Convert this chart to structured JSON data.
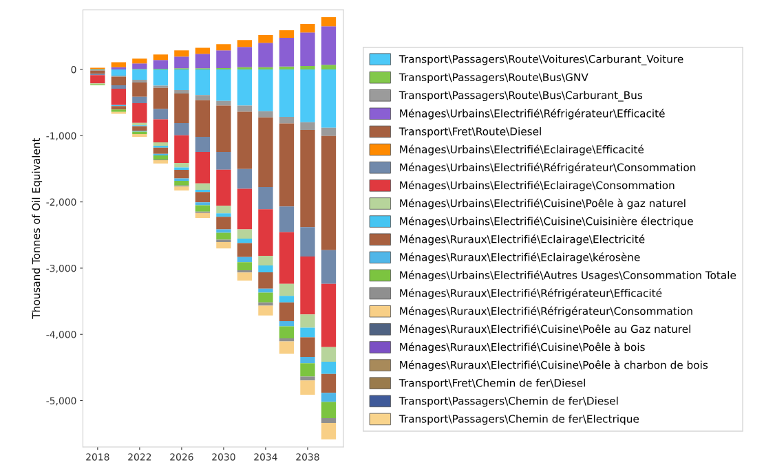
{
  "chart_data": {
    "type": "bar",
    "stacked": true,
    "ylabel": "Thousand Tonnes of Oil Equivalent",
    "x": [
      2018,
      2020,
      2022,
      2024,
      2026,
      2028,
      2030,
      2032,
      2034,
      2036,
      2038,
      2040
    ],
    "xlim": [
      2016.6,
      2041.4
    ],
    "xticks": [
      2018,
      2022,
      2026,
      2030,
      2034,
      2038
    ],
    "ylim": [
      -5700,
      900
    ],
    "yticks": [
      0,
      {
        "value": -1000,
        "label": "-1,000"
      },
      {
        "value": -2000,
        "label": "-2,000"
      },
      {
        "value": -3000,
        "label": "-3,000"
      },
      {
        "value": -4000,
        "label": "-4,000"
      },
      {
        "value": -5000,
        "label": "-5,000"
      }
    ],
    "grid": false,
    "legend": "right",
    "series": [
      {
        "name": "Transport\\Passagers\\Route\\Voitures\\Carburant_Voiture",
        "color": "#4cc9f8",
        "values": [
          -15,
          -94,
          -156,
          -243,
          -312,
          -388,
          -475,
          -544,
          -631,
          -717,
          -797,
          -880
        ]
      },
      {
        "name": "Transport\\Passagers\\Route\\Bus\\GNV",
        "color": "#82c84a",
        "values": [
          0,
          0,
          7,
          10,
          17,
          17,
          21,
          35,
          35,
          45,
          52,
          69
        ]
      },
      {
        "name": "Transport\\Passagers\\Route\\Bus\\Carburant_Bus",
        "color": "#9b9b9b",
        "values": [
          0,
          -17,
          -42,
          -35,
          -52,
          -76,
          -69,
          -94,
          -94,
          -97,
          -118,
          -125
        ]
      },
      {
        "name": "Ménages\\Urbains\\Electrifié\\Réfrigérateur\\Efficacité",
        "color": "#8a5fd3",
        "values": [
          null,
          35,
          83,
          132,
          177,
          218,
          267,
          305,
          367,
          433,
          506,
          582
        ]
      },
      {
        "name": "Transport\\Fret\\Route\\Diesel",
        "color": "#a65f3f",
        "values": [
          -50,
          -128,
          -215,
          -319,
          -447,
          -554,
          -703,
          -866,
          -1050,
          -1254,
          -1466,
          -1722
        ]
      },
      {
        "name": "Ménages\\Urbains\\Electrifié\\Eclairage\\Efficacité",
        "color": "#ff8a00",
        "values": [
          25,
          73,
          73,
          83,
          94,
          93,
          93,
          104,
          118,
          115,
          128,
          139
        ]
      },
      {
        "name": "Ménages\\Urbains\\Electrifié\\Réfrigérateur\\Consommation",
        "color": "#7089ab",
        "values": [
          -20,
          -52,
          -97,
          -156,
          -184,
          -229,
          -267,
          -298,
          -336,
          -388,
          -444,
          -509
        ]
      },
      {
        "name": "Ménages\\Urbains\\Electrifié\\Eclairage\\Consommation",
        "color": "#e0393f",
        "values": [
          -125,
          -246,
          -298,
          -347,
          -416,
          -475,
          -544,
          -613,
          -703,
          -780,
          -873,
          -956
        ]
      },
      {
        "name": "Ménages\\Urbains\\Electrifié\\Cuisine\\Poêle à gaz naturel",
        "color": "#b7d49b",
        "values": [
          -15,
          0,
          -35,
          -52,
          -69,
          -94,
          -114,
          -139,
          -146,
          -184,
          -201,
          -222
        ]
      },
      {
        "name": "Ménages\\Urbains\\Electrifié\\Cuisine\\Cuisinière électrique",
        "color": "#45c5f2",
        "values": [
          0,
          -17,
          -14,
          -28,
          -35,
          -35,
          -52,
          -69,
          -104,
          -97,
          -146,
          -184
        ]
      },
      {
        "name": "Ménages\\Ruraux\\Electrifié\\Eclairage\\Electricité",
        "color": "#a8603f",
        "values": [
          0,
          -52,
          -69,
          -94,
          -132,
          -156,
          -191,
          -208,
          -246,
          -284,
          -295,
          -284
        ]
      },
      {
        "name": "Ménages\\Ruraux\\Electrifié\\Eclairage\\kérosène",
        "color": "#4fb6e8",
        "values": [
          0,
          0,
          -14,
          -24,
          -35,
          -45,
          -52,
          -80,
          -59,
          -76,
          -97,
          -139
        ]
      },
      {
        "name": "Ménages\\Urbains\\Electrifié\\Autres Usages\\Consommation Totale",
        "color": "#7cc440",
        "values": [
          -15,
          -35,
          -35,
          -62,
          -69,
          -94,
          -104,
          -121,
          -149,
          -184,
          -198,
          -243
        ]
      },
      {
        "name": "Ménages\\Ruraux\\Electrifié\\Réfrigérateur\\Efficacité",
        "color": "#8f8f8f",
        "values": [
          0,
          0,
          0,
          -10,
          -17,
          -21,
          -35,
          -35,
          -49,
          -45,
          -62,
          -73
        ]
      },
      {
        "name": "Ménages\\Ruraux\\Electrifié\\Réfrigérateur\\Consommation",
        "color": "#f8cf86",
        "values": [
          0,
          -28,
          -42,
          -49,
          -59,
          -76,
          -97,
          -121,
          -149,
          -187,
          -215,
          -249
        ]
      },
      {
        "name": "Ménages\\Ruraux\\Electrifié\\Cuisine\\Poêle au Gaz naturel",
        "color": "#4f6282",
        "values": [
          0,
          0,
          0,
          0,
          0,
          0,
          0,
          0,
          0,
          0,
          0,
          0
        ]
      },
      {
        "name": "Ménages\\Ruraux\\Electrifié\\Cuisine\\Poêle à bois",
        "color": "#7b4fc4",
        "values": [
          0,
          0,
          0,
          0,
          0,
          0,
          0,
          0,
          0,
          0,
          0,
          0
        ]
      },
      {
        "name": "Ménages\\Ruraux\\Electrifié\\Cuisine\\Poêle à charbon de bois",
        "color": "#a88a5a",
        "values": [
          0,
          0,
          0,
          0,
          0,
          0,
          0,
          0,
          0,
          0,
          0,
          0
        ]
      },
      {
        "name": "Transport\\Fret\\Chemin de fer\\Diesel",
        "color": "#9a7b4c",
        "values": [
          0,
          0,
          0,
          0,
          0,
          0,
          0,
          0,
          0,
          0,
          0,
          0
        ]
      },
      {
        "name": "Transport\\Passagers\\Chemin de fer\\Diesel",
        "color": "#3f5a9a",
        "values": [
          0,
          0,
          0,
          0,
          0,
          0,
          0,
          0,
          0,
          0,
          0,
          0
        ]
      },
      {
        "name": "Transport\\Passagers\\Chemin de fer\\Electrique",
        "color": "#f9d48c",
        "values": [
          0,
          0,
          0,
          0,
          0,
          0,
          0,
          0,
          0,
          0,
          0,
          0
        ]
      }
    ]
  }
}
